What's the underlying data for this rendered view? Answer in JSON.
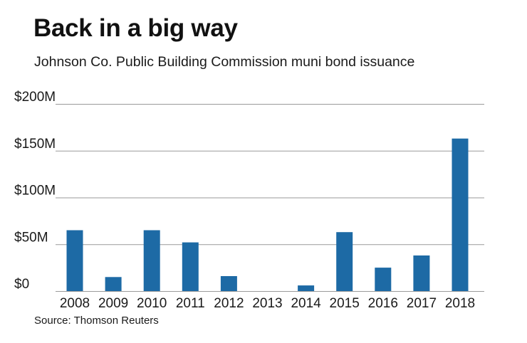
{
  "chart_data": {
    "type": "bar",
    "title": "Back in a big way",
    "subtitle": "Johnson Co. Public Building Commission muni bond issuance",
    "source": "Source: Thomson Reuters",
    "xlabel": "",
    "ylabel": "",
    "categories": [
      "2008",
      "2009",
      "2010",
      "2011",
      "2012",
      "2013",
      "2014",
      "2015",
      "2016",
      "2017",
      "2018"
    ],
    "values": [
      65,
      15,
      65,
      52,
      16,
      0,
      6,
      63,
      25,
      38,
      163
    ],
    "ylim": [
      0,
      200
    ],
    "yticks": [
      0,
      50,
      100,
      150,
      200
    ],
    "ytick_labels": [
      "$0",
      "$50M",
      "$100M",
      "$150M",
      "$200M"
    ],
    "grid": true,
    "bar_color": "#1d6aa5",
    "grid_color": "#9a9a9a"
  }
}
